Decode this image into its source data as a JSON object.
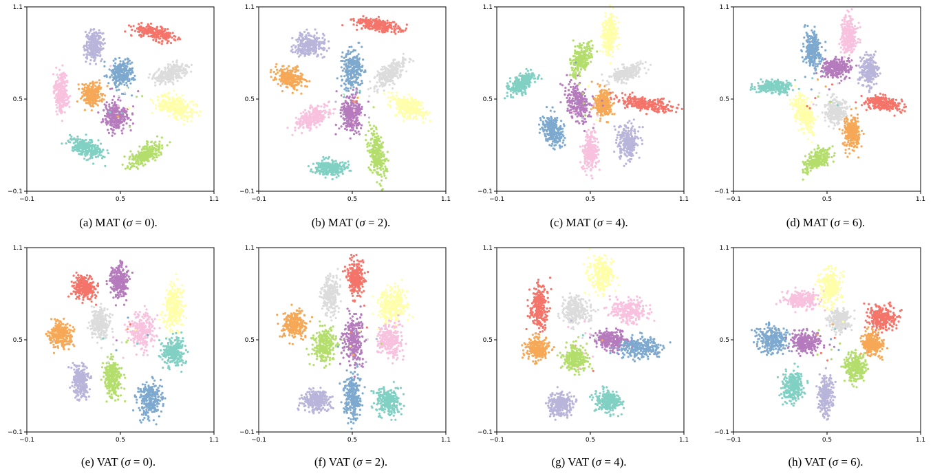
{
  "figure": {
    "captions": [
      {
        "prefix": "(a) MAT (",
        "sym": "σ",
        "suffix": " = 0)."
      },
      {
        "prefix": "(b) MAT (",
        "sym": "σ",
        "suffix": " = 2)."
      },
      {
        "prefix": "(c) MAT (",
        "sym": "σ",
        "suffix": " = 4)."
      },
      {
        "prefix": "(d) MAT (",
        "sym": "σ",
        "suffix": " = 6)."
      },
      {
        "prefix": "(e) VAT (",
        "sym": "σ",
        "suffix": " = 0)."
      },
      {
        "prefix": "(f) VAT (",
        "sym": "σ",
        "suffix": " = 2)."
      },
      {
        "prefix": "(g) VAT (",
        "sym": "σ",
        "suffix": " = 4)."
      },
      {
        "prefix": "(h) VAT (",
        "sym": "σ",
        "suffix": " = 6)."
      }
    ]
  },
  "chart_data": [
    {
      "type": "scatter",
      "title": "",
      "xlabel": "",
      "ylabel": "",
      "xlim": [
        -0.1,
        1.1
      ],
      "ylim": [
        -0.1,
        1.1
      ],
      "xticks": [
        "-0.1",
        "0.5",
        "1.1"
      ],
      "yticks": [
        "-0.1",
        "0.5",
        "1.1"
      ],
      "grid": false,
      "clusters": [
        {
          "color": "#f4746a",
          "cx": 0.72,
          "cy": 0.93,
          "sx": 0.13,
          "sy": 0.035,
          "angle": -15
        },
        {
          "color": "#b9b4da",
          "cx": 0.33,
          "cy": 0.85,
          "sx": 0.05,
          "sy": 0.085,
          "angle": 0
        },
        {
          "color": "#7ea9cf",
          "cx": 0.51,
          "cy": 0.67,
          "sx": 0.07,
          "sy": 0.085,
          "angle": 0
        },
        {
          "color": "#dcdcdc",
          "cx": 0.83,
          "cy": 0.67,
          "sx": 0.1,
          "sy": 0.045,
          "angle": 20
        },
        {
          "color": "#f8c1de",
          "cx": 0.12,
          "cy": 0.55,
          "sx": 0.04,
          "sy": 0.12,
          "angle": 0
        },
        {
          "color": "#f6a856",
          "cx": 0.32,
          "cy": 0.53,
          "sx": 0.06,
          "sy": 0.07,
          "angle": 0
        },
        {
          "color": "#ffffa8",
          "cx": 0.85,
          "cy": 0.45,
          "sx": 0.12,
          "sy": 0.06,
          "angle": -20
        },
        {
          "color": "#b57bbd",
          "cx": 0.47,
          "cy": 0.39,
          "sx": 0.07,
          "sy": 0.08,
          "angle": 0
        },
        {
          "color": "#80d0c3",
          "cx": 0.28,
          "cy": 0.18,
          "sx": 0.1,
          "sy": 0.05,
          "angle": -25
        },
        {
          "color": "#b4de6c",
          "cx": 0.66,
          "cy": 0.14,
          "sx": 0.11,
          "sy": 0.05,
          "angle": 30
        }
      ]
    },
    {
      "type": "scatter",
      "title": "",
      "xlabel": "",
      "ylabel": "",
      "xlim": [
        -0.1,
        1.1
      ],
      "ylim": [
        -0.1,
        1.1
      ],
      "xticks": [
        "-0.1",
        "0.5",
        "1.1"
      ],
      "yticks": [
        "-0.1",
        "0.5",
        "1.1"
      ],
      "grid": false,
      "clusters": [
        {
          "color": "#b9b4da",
          "cx": 0.23,
          "cy": 0.85,
          "sx": 0.09,
          "sy": 0.07,
          "angle": 0
        },
        {
          "color": "#f4746a",
          "cx": 0.66,
          "cy": 0.98,
          "sx": 0.14,
          "sy": 0.035,
          "angle": -10
        },
        {
          "color": "#7ea9cf",
          "cx": 0.5,
          "cy": 0.69,
          "sx": 0.06,
          "sy": 0.11,
          "angle": 0
        },
        {
          "color": "#dcdcdc",
          "cx": 0.74,
          "cy": 0.66,
          "sx": 0.12,
          "sy": 0.05,
          "angle": 45
        },
        {
          "color": "#f6a856",
          "cx": 0.1,
          "cy": 0.64,
          "sx": 0.08,
          "sy": 0.06,
          "angle": -10
        },
        {
          "color": "#ffffa8",
          "cx": 0.86,
          "cy": 0.45,
          "sx": 0.11,
          "sy": 0.06,
          "angle": -25
        },
        {
          "color": "#f8c1de",
          "cx": 0.25,
          "cy": 0.38,
          "sx": 0.11,
          "sy": 0.055,
          "angle": 30
        },
        {
          "color": "#b57bbd",
          "cx": 0.49,
          "cy": 0.4,
          "sx": 0.06,
          "sy": 0.11,
          "angle": 0
        },
        {
          "color": "#80d0c3",
          "cx": 0.36,
          "cy": 0.05,
          "sx": 0.1,
          "sy": 0.045,
          "angle": 0
        },
        {
          "color": "#b4de6c",
          "cx": 0.66,
          "cy": 0.13,
          "sx": 0.045,
          "sy": 0.14,
          "angle": 10
        }
      ]
    },
    {
      "type": "scatter",
      "title": "",
      "xlabel": "",
      "ylabel": "",
      "xlim": [
        -0.1,
        1.1
      ],
      "ylim": [
        -0.1,
        1.1
      ],
      "xticks": [
        "-0.1",
        "0.5",
        "1.1"
      ],
      "yticks": [
        "-0.1",
        "0.5",
        "1.1"
      ],
      "grid": false,
      "clusters": [
        {
          "color": "#ffffa8",
          "cx": 0.62,
          "cy": 0.92,
          "sx": 0.04,
          "sy": 0.12,
          "angle": 0
        },
        {
          "color": "#b4de6c",
          "cx": 0.44,
          "cy": 0.76,
          "sx": 0.055,
          "sy": 0.1,
          "angle": -20
        },
        {
          "color": "#dcdcdc",
          "cx": 0.73,
          "cy": 0.67,
          "sx": 0.11,
          "sy": 0.04,
          "angle": 20
        },
        {
          "color": "#80d0c3",
          "cx": 0.06,
          "cy": 0.6,
          "sx": 0.1,
          "sy": 0.045,
          "angle": 35
        },
        {
          "color": "#b57bbd",
          "cx": 0.42,
          "cy": 0.48,
          "sx": 0.065,
          "sy": 0.12,
          "angle": 20
        },
        {
          "color": "#f6a856",
          "cx": 0.58,
          "cy": 0.47,
          "sx": 0.05,
          "sy": 0.08,
          "angle": 0
        },
        {
          "color": "#f4746a",
          "cx": 0.85,
          "cy": 0.47,
          "sx": 0.15,
          "sy": 0.04,
          "angle": -10
        },
        {
          "color": "#7ea9cf",
          "cx": 0.26,
          "cy": 0.29,
          "sx": 0.06,
          "sy": 0.1,
          "angle": 25
        },
        {
          "color": "#f8c1de",
          "cx": 0.5,
          "cy": 0.16,
          "sx": 0.04,
          "sy": 0.11,
          "angle": 0
        },
        {
          "color": "#b9b4da",
          "cx": 0.74,
          "cy": 0.22,
          "sx": 0.06,
          "sy": 0.1,
          "angle": 0
        }
      ]
    },
    {
      "type": "scatter",
      "title": "",
      "xlabel": "",
      "ylabel": "",
      "xlim": [
        -0.1,
        1.1
      ],
      "ylim": [
        -0.1,
        1.1
      ],
      "xticks": [
        "-0.1",
        "0.5",
        "1.1"
      ],
      "yticks": [
        "-0.1",
        "0.5",
        "1.1"
      ],
      "grid": false,
      "clusters": [
        {
          "color": "#7ea9cf",
          "cx": 0.41,
          "cy": 0.82,
          "sx": 0.05,
          "sy": 0.11,
          "angle": 0
        },
        {
          "color": "#f8c1de",
          "cx": 0.64,
          "cy": 0.91,
          "sx": 0.045,
          "sy": 0.11,
          "angle": 0
        },
        {
          "color": "#b57bbd",
          "cx": 0.56,
          "cy": 0.7,
          "sx": 0.08,
          "sy": 0.06,
          "angle": 0
        },
        {
          "color": "#b9b4da",
          "cx": 0.77,
          "cy": 0.69,
          "sx": 0.055,
          "sy": 0.09,
          "angle": 0
        },
        {
          "color": "#80d0c3",
          "cx": 0.16,
          "cy": 0.58,
          "sx": 0.1,
          "sy": 0.035,
          "angle": 0
        },
        {
          "color": "#f4746a",
          "cx": 0.86,
          "cy": 0.47,
          "sx": 0.12,
          "sy": 0.04,
          "angle": -10
        },
        {
          "color": "#ffffa8",
          "cx": 0.35,
          "cy": 0.4,
          "sx": 0.05,
          "sy": 0.12,
          "angle": 20
        },
        {
          "color": "#dcdcdc",
          "cx": 0.55,
          "cy": 0.42,
          "sx": 0.06,
          "sy": 0.07,
          "angle": 0
        },
        {
          "color": "#f6a856",
          "cx": 0.66,
          "cy": 0.28,
          "sx": 0.05,
          "sy": 0.1,
          "angle": 0
        },
        {
          "color": "#b4de6c",
          "cx": 0.43,
          "cy": 0.1,
          "sx": 0.1,
          "sy": 0.045,
          "angle": 35
        }
      ]
    },
    {
      "type": "scatter",
      "title": "",
      "xlabel": "",
      "ylabel": "",
      "xlim": [
        -0.1,
        1.1
      ],
      "ylim": [
        -0.1,
        1.1
      ],
      "xticks": [
        "-0.1",
        "0.5",
        "1.1"
      ],
      "yticks": [
        "-0.1",
        "0.5",
        "1.1"
      ],
      "grid": false,
      "clusters": [
        {
          "color": "#f4746a",
          "cx": 0.27,
          "cy": 0.84,
          "sx": 0.07,
          "sy": 0.07,
          "angle": 0
        },
        {
          "color": "#b57bbd",
          "cx": 0.49,
          "cy": 0.88,
          "sx": 0.06,
          "sy": 0.1,
          "angle": 0
        },
        {
          "color": "#ffffa8",
          "cx": 0.84,
          "cy": 0.72,
          "sx": 0.06,
          "sy": 0.13,
          "angle": 0
        },
        {
          "color": "#dcdcdc",
          "cx": 0.37,
          "cy": 0.61,
          "sx": 0.05,
          "sy": 0.09,
          "angle": 0
        },
        {
          "color": "#f8c1de",
          "cx": 0.64,
          "cy": 0.56,
          "sx": 0.07,
          "sy": 0.1,
          "angle": 0
        },
        {
          "color": "#f6a856",
          "cx": 0.12,
          "cy": 0.53,
          "sx": 0.07,
          "sy": 0.08,
          "angle": 0
        },
        {
          "color": "#80d0c3",
          "cx": 0.84,
          "cy": 0.42,
          "sx": 0.065,
          "sy": 0.08,
          "angle": 0
        },
        {
          "color": "#b9b4da",
          "cx": 0.24,
          "cy": 0.23,
          "sx": 0.045,
          "sy": 0.1,
          "angle": 0
        },
        {
          "color": "#b4de6c",
          "cx": 0.45,
          "cy": 0.25,
          "sx": 0.05,
          "sy": 0.11,
          "angle": 0
        },
        {
          "color": "#7ea9cf",
          "cx": 0.69,
          "cy": 0.11,
          "sx": 0.07,
          "sy": 0.1,
          "angle": 0
        }
      ]
    },
    {
      "type": "scatter",
      "title": "",
      "xlabel": "",
      "ylabel": "",
      "xlim": [
        -0.1,
        1.1
      ],
      "ylim": [
        -0.1,
        1.1
      ],
      "xticks": [
        "-0.1",
        "0.5",
        "1.1"
      ],
      "yticks": [
        "-0.1",
        "0.5",
        "1.1"
      ],
      "grid": false,
      "clusters": [
        {
          "color": "#f4746a",
          "cx": 0.52,
          "cy": 0.91,
          "sx": 0.05,
          "sy": 0.1,
          "angle": 0
        },
        {
          "color": "#dcdcdc",
          "cx": 0.36,
          "cy": 0.79,
          "sx": 0.05,
          "sy": 0.11,
          "angle": 0
        },
        {
          "color": "#ffffa8",
          "cx": 0.76,
          "cy": 0.73,
          "sx": 0.08,
          "sy": 0.1,
          "angle": 0
        },
        {
          "color": "#f6a856",
          "cx": 0.13,
          "cy": 0.6,
          "sx": 0.07,
          "sy": 0.08,
          "angle": 0
        },
        {
          "color": "#b4de6c",
          "cx": 0.32,
          "cy": 0.46,
          "sx": 0.07,
          "sy": 0.1,
          "angle": 0
        },
        {
          "color": "#b57bbd",
          "cx": 0.51,
          "cy": 0.5,
          "sx": 0.06,
          "sy": 0.15,
          "angle": 0
        },
        {
          "color": "#f8c1de",
          "cx": 0.74,
          "cy": 0.5,
          "sx": 0.07,
          "sy": 0.1,
          "angle": 0
        },
        {
          "color": "#b9b4da",
          "cx": 0.27,
          "cy": 0.1,
          "sx": 0.08,
          "sy": 0.065,
          "angle": 0
        },
        {
          "color": "#7ea9cf",
          "cx": 0.5,
          "cy": 0.13,
          "sx": 0.05,
          "sy": 0.13,
          "angle": 0
        },
        {
          "color": "#80d0c3",
          "cx": 0.73,
          "cy": 0.1,
          "sx": 0.07,
          "sy": 0.08,
          "angle": 0
        }
      ]
    },
    {
      "type": "scatter",
      "title": "",
      "xlabel": "",
      "ylabel": "",
      "xlim": [
        -0.1,
        1.1
      ],
      "ylim": [
        -0.1,
        1.1
      ],
      "xticks": [
        "-0.1",
        "0.5",
        "1.1"
      ],
      "yticks": [
        "-0.1",
        "0.5",
        "1.1"
      ],
      "grid": false,
      "clusters": [
        {
          "color": "#ffffa8",
          "cx": 0.57,
          "cy": 0.93,
          "sx": 0.07,
          "sy": 0.1,
          "angle": 0
        },
        {
          "color": "#f4746a",
          "cx": 0.17,
          "cy": 0.71,
          "sx": 0.05,
          "sy": 0.13,
          "angle": 0
        },
        {
          "color": "#dcdcdc",
          "cx": 0.41,
          "cy": 0.69,
          "sx": 0.09,
          "sy": 0.08,
          "angle": 0
        },
        {
          "color": "#f8c1de",
          "cx": 0.75,
          "cy": 0.69,
          "sx": 0.1,
          "sy": 0.07,
          "angle": 0
        },
        {
          "color": "#b57bbd",
          "cx": 0.63,
          "cy": 0.5,
          "sx": 0.09,
          "sy": 0.06,
          "angle": -10
        },
        {
          "color": "#7ea9cf",
          "cx": 0.82,
          "cy": 0.45,
          "sx": 0.12,
          "sy": 0.06,
          "angle": 0
        },
        {
          "color": "#f6a856",
          "cx": 0.16,
          "cy": 0.44,
          "sx": 0.07,
          "sy": 0.07,
          "angle": 0
        },
        {
          "color": "#b4de6c",
          "cx": 0.4,
          "cy": 0.38,
          "sx": 0.07,
          "sy": 0.07,
          "angle": 0
        },
        {
          "color": "#b9b4da",
          "cx": 0.31,
          "cy": 0.08,
          "sx": 0.07,
          "sy": 0.07,
          "angle": 0
        },
        {
          "color": "#80d0c3",
          "cx": 0.61,
          "cy": 0.1,
          "sx": 0.07,
          "sy": 0.06,
          "angle": 0
        }
      ]
    },
    {
      "type": "scatter",
      "title": "",
      "xlabel": "",
      "ylabel": "",
      "xlim": [
        -0.1,
        1.1
      ],
      "ylim": [
        -0.1,
        1.1
      ],
      "xticks": [
        "-0.1",
        "0.5",
        "1.1"
      ],
      "yticks": [
        "-0.1",
        "0.5",
        "1.1"
      ],
      "grid": false,
      "clusters": [
        {
          "color": "#f8c1de",
          "cx": 0.33,
          "cy": 0.76,
          "sx": 0.11,
          "sy": 0.05,
          "angle": 0
        },
        {
          "color": "#ffffa8",
          "cx": 0.52,
          "cy": 0.83,
          "sx": 0.06,
          "sy": 0.11,
          "angle": 0
        },
        {
          "color": "#dcdcdc",
          "cx": 0.58,
          "cy": 0.63,
          "sx": 0.06,
          "sy": 0.06,
          "angle": 0
        },
        {
          "color": "#f4746a",
          "cx": 0.85,
          "cy": 0.64,
          "sx": 0.08,
          "sy": 0.07,
          "angle": 0
        },
        {
          "color": "#7ea9cf",
          "cx": 0.15,
          "cy": 0.5,
          "sx": 0.09,
          "sy": 0.08,
          "angle": 0
        },
        {
          "color": "#b57bbd",
          "cx": 0.36,
          "cy": 0.48,
          "sx": 0.08,
          "sy": 0.06,
          "angle": 0
        },
        {
          "color": "#f6a856",
          "cx": 0.79,
          "cy": 0.47,
          "sx": 0.06,
          "sy": 0.07,
          "angle": 0
        },
        {
          "color": "#b4de6c",
          "cx": 0.68,
          "cy": 0.32,
          "sx": 0.07,
          "sy": 0.08,
          "angle": 0
        },
        {
          "color": "#80d0c3",
          "cx": 0.28,
          "cy": 0.2,
          "sx": 0.06,
          "sy": 0.09,
          "angle": 0
        },
        {
          "color": "#b9b4da",
          "cx": 0.49,
          "cy": 0.14,
          "sx": 0.04,
          "sy": 0.11,
          "angle": 0
        }
      ]
    }
  ]
}
